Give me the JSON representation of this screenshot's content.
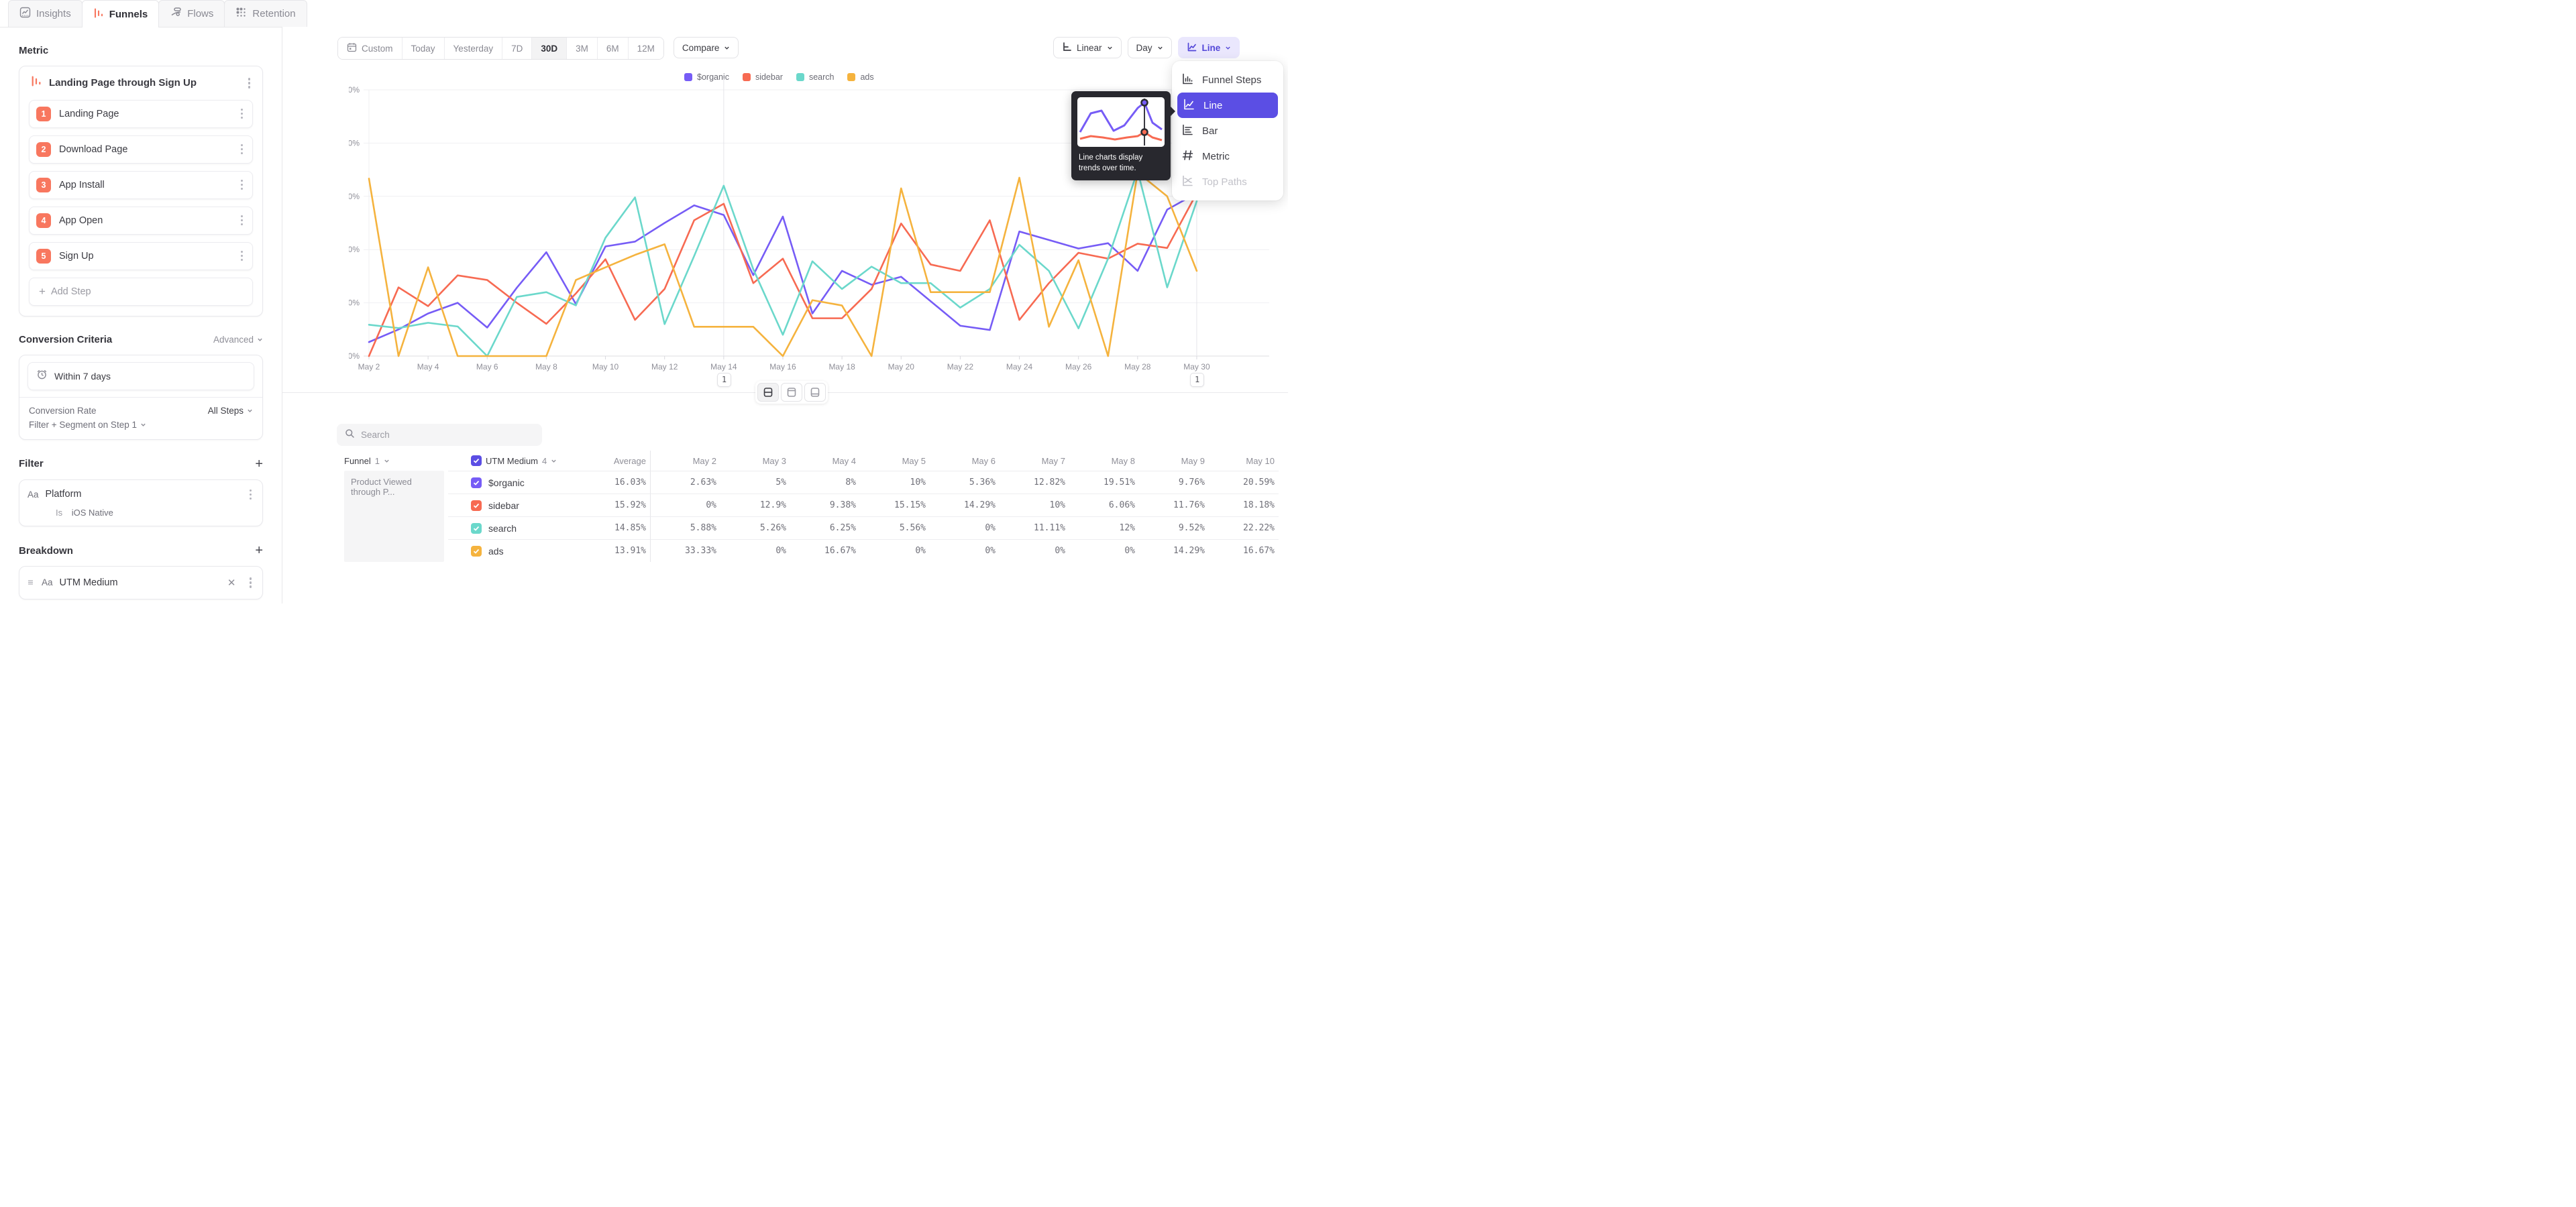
{
  "tabs": [
    {
      "label": "Insights",
      "active": false
    },
    {
      "label": "Funnels",
      "active": true
    },
    {
      "label": "Flows",
      "active": false
    },
    {
      "label": "Retention",
      "active": false
    }
  ],
  "sidebar": {
    "metric_section_label": "Metric",
    "metric_title": "Landing Page through Sign Up",
    "steps": [
      {
        "num": "1",
        "label": "Landing Page"
      },
      {
        "num": "2",
        "label": "Download Page"
      },
      {
        "num": "3",
        "label": "App Install"
      },
      {
        "num": "4",
        "label": "App Open"
      },
      {
        "num": "5",
        "label": "Sign Up"
      }
    ],
    "add_step_label": "Add Step",
    "conversion": {
      "title": "Conversion Criteria",
      "advanced_label": "Advanced",
      "window_value": "Within 7 days",
      "rate_label": "Conversion Rate",
      "rate_value": "All Steps",
      "filter_segment_label": "Filter + Segment on Step 1"
    },
    "filter": {
      "title": "Filter",
      "type_label": "Aa",
      "property": "Platform",
      "operator": "Is",
      "value": "iOS Native"
    },
    "breakdown": {
      "title": "Breakdown",
      "type_label": "Aa",
      "property": "UTM Medium"
    }
  },
  "toolbar": {
    "date_ranges": [
      "Custom",
      "Today",
      "Yesterday",
      "7D",
      "30D",
      "3M",
      "6M",
      "12M"
    ],
    "active_range": "30D",
    "compare_label": "Compare",
    "scale_label": "Linear",
    "granularity_label": "Day",
    "chart_type_label": "Line"
  },
  "chart_menu": {
    "items": [
      {
        "label": "Funnel Steps",
        "state": "normal"
      },
      {
        "label": "Line",
        "state": "selected"
      },
      {
        "label": "Bar",
        "state": "normal"
      },
      {
        "label": "Metric",
        "state": "normal"
      },
      {
        "label": "Top Paths",
        "state": "disabled"
      }
    ]
  },
  "tooltip": {
    "text": "Line charts display trends over time."
  },
  "colors": {
    "accent_purple": "#5b4ee4",
    "chart_type_chip_bg": "#eae7fd",
    "step_badge_orange": "#f8775f",
    "series": {
      "organic": "#765cf6",
      "sidebar": "#f76a52",
      "search": "#6bd8cb",
      "ads": "#f5b33e"
    }
  },
  "icons": [
    "insights-icon",
    "funnels-icon",
    "flows-icon",
    "retention-icon",
    "calendar-icon",
    "linear-axis-icon",
    "line-chart-icon",
    "funnel-steps-icon",
    "bar-chart-icon",
    "metric-hash-icon",
    "top-paths-icon",
    "clock-icon",
    "search-icon",
    "kebab-icon",
    "plus-icon",
    "close-icon",
    "drag-handle-icon",
    "chevron-down-icon",
    "checkbox-check-icon",
    "layout-split-icon",
    "layout-top-icon",
    "layout-bottom-icon"
  ],
  "chart_data": {
    "type": "line",
    "x": [
      "May 2",
      "May 3",
      "May 4",
      "May 5",
      "May 6",
      "May 7",
      "May 8",
      "May 9",
      "May 10",
      "May 11",
      "May 12",
      "May 13",
      "May 14",
      "May 15",
      "May 16",
      "May 17",
      "May 18",
      "May 19",
      "May 20",
      "May 21",
      "May 22",
      "May 23",
      "May 24",
      "May 25",
      "May 26",
      "May 27",
      "May 28",
      "May 29",
      "May 30"
    ],
    "xtick_labels": [
      "May 2",
      "May 4",
      "May 6",
      "May 8",
      "May 10",
      "May 12",
      "May 14",
      "May 16",
      "May 18",
      "May 20",
      "May 22",
      "May 24",
      "May 26",
      "May 28",
      "May 30"
    ],
    "ylim": [
      0,
      50
    ],
    "yticks": [
      "0%",
      "10%",
      "20%",
      "30%",
      "40%",
      "50%"
    ],
    "grid": true,
    "legend_position": "top",
    "series": [
      {
        "name": "$organic",
        "color": "#765cf6",
        "values": [
          2.63,
          5,
          8,
          10,
          5.36,
          12.82,
          19.51,
          9.76,
          20.59,
          21.5,
          25,
          28.3,
          26.5,
          15.2,
          26.2,
          8,
          16,
          13.4,
          14.9,
          10.3,
          5.7,
          4.9,
          23.4,
          21.8,
          20.2,
          21.2,
          16,
          27.5,
          30.6
        ]
      },
      {
        "name": "sidebar",
        "color": "#f76a52",
        "values": [
          0,
          12.9,
          9.38,
          15.15,
          14.29,
          10,
          6.06,
          11.76,
          18.18,
          6.8,
          12.6,
          25.5,
          28.6,
          13.7,
          18.3,
          7.1,
          7.1,
          12.6,
          24.9,
          17.2,
          16,
          25.5,
          6.8,
          13.7,
          19.4,
          18.3,
          21.1,
          20.3,
          30.6
        ]
      },
      {
        "name": "search",
        "color": "#6bd8cb",
        "values": [
          5.88,
          5.26,
          6.25,
          5.56,
          0,
          11.11,
          12,
          9.52,
          22.22,
          29.8,
          6,
          18.8,
          32,
          16.3,
          4,
          17.8,
          12.6,
          16.8,
          13.7,
          13.7,
          9.1,
          12.6,
          20.9,
          16,
          5.2,
          18.3,
          34.8,
          12.9,
          29.1
        ]
      },
      {
        "name": "ads",
        "color": "#f5b33e",
        "values": [
          33.33,
          0,
          16.67,
          0,
          0,
          0,
          0,
          14.29,
          16.67,
          19,
          21,
          5.5,
          5.5,
          5.5,
          0,
          10.5,
          9.5,
          0,
          31.5,
          12,
          12,
          12,
          33.5,
          5.5,
          18,
          0,
          34.5,
          30,
          16
        ]
      }
    ],
    "annotations": [
      {
        "x": "May 14",
        "label": "1"
      },
      {
        "x": "May 30",
        "label": "1"
      }
    ]
  },
  "table": {
    "search_placeholder": "Search",
    "funnel_col": {
      "label": "Funnel",
      "count": "1"
    },
    "breakdown_col": {
      "label": "UTM Medium",
      "count": "4"
    },
    "columns": [
      "Average",
      "May 2",
      "May 3",
      "May 4",
      "May 5",
      "May 6",
      "May 7",
      "May 8",
      "May 9",
      "May 10"
    ],
    "funnel_cell": "Product Viewed through P...",
    "rows": [
      {
        "name": "$organic",
        "values": [
          "16.03%",
          "2.63%",
          "5%",
          "8%",
          "10%",
          "5.36%",
          "12.82%",
          "19.51%",
          "9.76%",
          "20.59%"
        ]
      },
      {
        "name": "sidebar",
        "values": [
          "15.92%",
          "0%",
          "12.9%",
          "9.38%",
          "15.15%",
          "14.29%",
          "10%",
          "6.06%",
          "11.76%",
          "18.18%"
        ]
      },
      {
        "name": "search",
        "values": [
          "14.85%",
          "5.88%",
          "5.26%",
          "6.25%",
          "5.56%",
          "0%",
          "11.11%",
          "12%",
          "9.52%",
          "22.22%"
        ]
      },
      {
        "name": "ads",
        "values": [
          "13.91%",
          "33.33%",
          "0%",
          "16.67%",
          "0%",
          "0%",
          "0%",
          "0%",
          "14.29%",
          "16.67%"
        ]
      }
    ]
  }
}
